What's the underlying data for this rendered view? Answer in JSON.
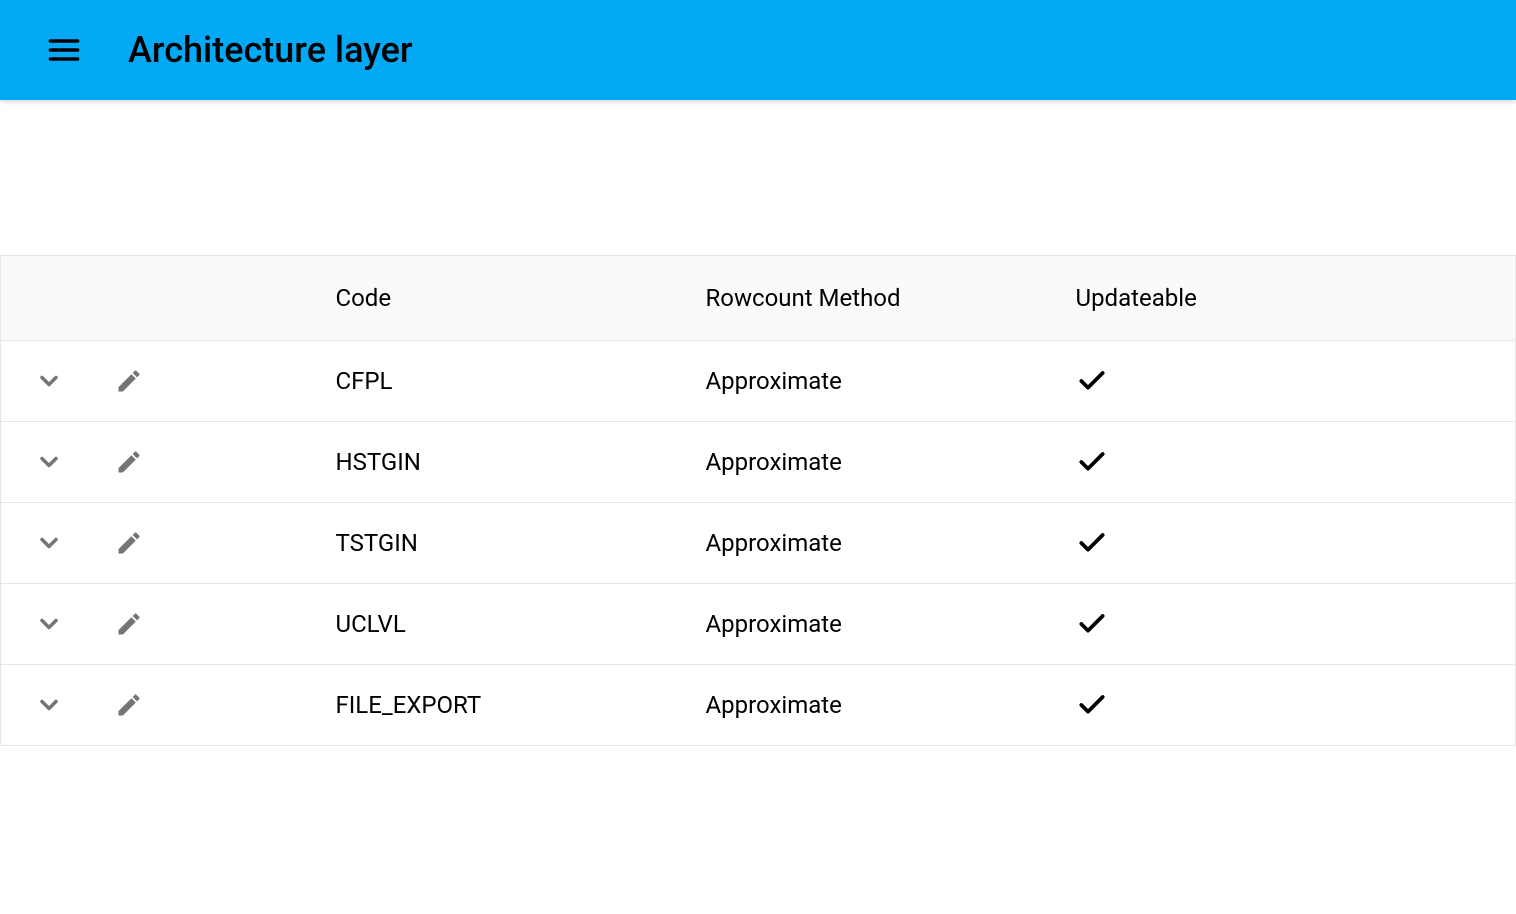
{
  "colors": {
    "appbar_bg": "#03a9f4",
    "appbar_text": "#000000",
    "icon_gray": "#757575",
    "border": "#e6e6e6",
    "header_bg": "#fafafa",
    "text": "#000000",
    "check": "#000000"
  },
  "header": {
    "title": "Architecture layer"
  },
  "table": {
    "columns": {
      "code": "Code",
      "rowcount_method": "Rowcount Method",
      "updateable": "Updateable"
    },
    "rows": [
      {
        "code": "CFPL",
        "rowcount_method": "Approximate",
        "updateable": true
      },
      {
        "code": "HSTGIN",
        "rowcount_method": "Approximate",
        "updateable": true
      },
      {
        "code": "TSTGIN",
        "rowcount_method": "Approximate",
        "updateable": true
      },
      {
        "code": "UCLVL",
        "rowcount_method": "Approximate",
        "updateable": true
      },
      {
        "code": "FILE_EXPORT",
        "rowcount_method": "Approximate",
        "updateable": true
      }
    ]
  }
}
